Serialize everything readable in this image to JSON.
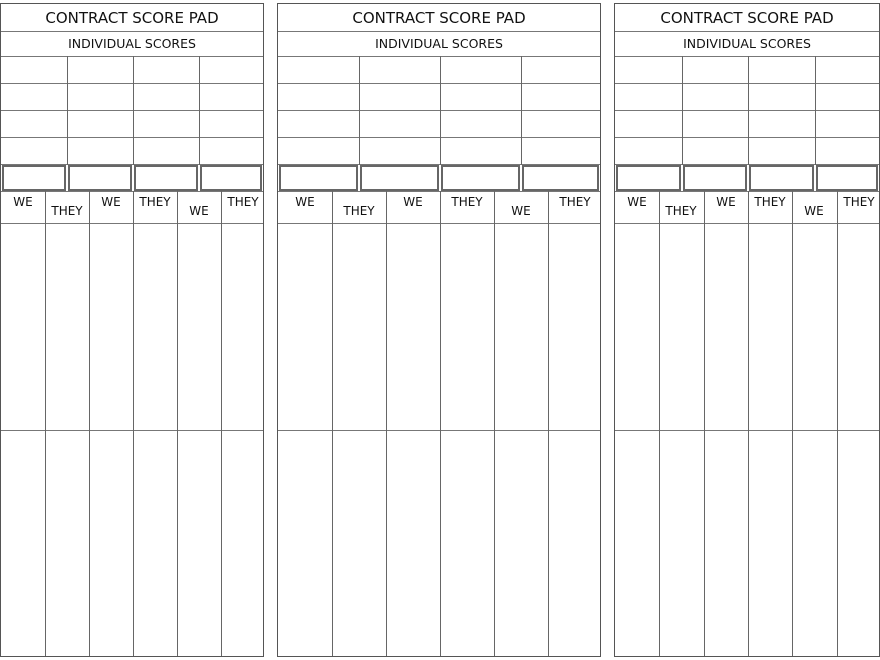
{
  "panels": [
    {
      "title": "CONTRACT SCORE PAD",
      "subtitle": "INDIVIDUAL SCORES",
      "columns": [
        "WE",
        "THEY",
        "WE",
        "THEY",
        "WE",
        "THEY"
      ]
    },
    {
      "title": "CONTRACT SCORE PAD",
      "subtitle": "INDIVIDUAL SCORES",
      "columns": [
        "WE",
        "THEY",
        "WE",
        "THEY",
        "WE",
        "THEY"
      ]
    },
    {
      "title": "CONTRACT SCORE PAD",
      "subtitle": "INDIVIDUAL SCORES",
      "columns": [
        "WE",
        "THEY",
        "WE",
        "THEY",
        "WE",
        "THEY"
      ]
    }
  ],
  "colors": {
    "lines": "#666666",
    "background": "#ffffff",
    "text": "#111111"
  }
}
